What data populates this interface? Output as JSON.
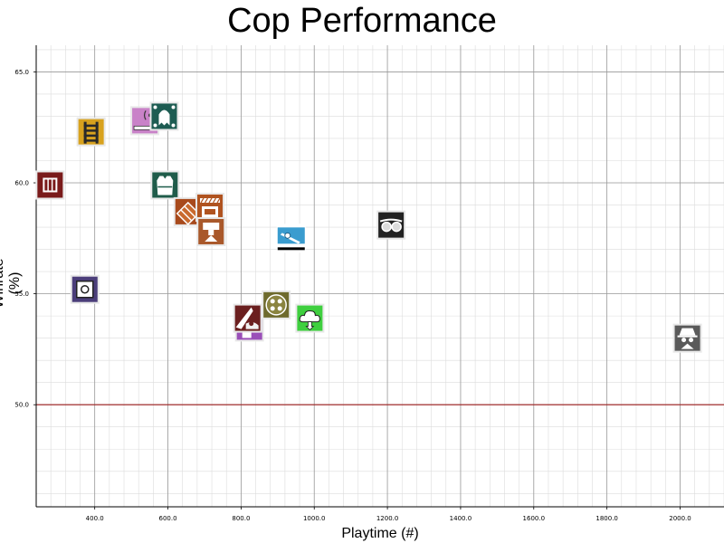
{
  "chart_data": {
    "type": "scatter",
    "title": "Cop Performance",
    "xlabel": "Playtime (#)",
    "ylabel": "Winrate (%)",
    "xlim": [
      240,
      2120
    ],
    "ylim": [
      45.4,
      66.2
    ],
    "x_ticks": [
      400,
      600,
      800,
      1000,
      1200,
      1400,
      1600,
      1800,
      2000
    ],
    "x_tick_labels": [
      "400.0",
      "600.0",
      "800.0",
      "1000.0",
      "1200.0",
      "1400.0",
      "1600.0",
      "1800.0",
      "2000.0"
    ],
    "y_ticks": [
      50,
      55,
      60,
      65
    ],
    "y_tick_labels": [
      "50.0",
      "55.0",
      "60.0",
      "65.0"
    ],
    "grid": true,
    "reference_line": {
      "y": 50,
      "color": "#a02020"
    },
    "points": [
      {
        "icon": "first-aid-icon",
        "x": 278,
        "y": 59.9
      },
      {
        "icon": "ladder-icon",
        "x": 390,
        "y": 62.3
      },
      {
        "icon": "safe-icon",
        "x": 373,
        "y": 55.2
      },
      {
        "icon": "signal-device-icon",
        "x": 537,
        "y": 62.8
      },
      {
        "icon": "ghost-device-icon",
        "x": 590,
        "y": 63.0
      },
      {
        "icon": "armor-vest-icon",
        "x": 592,
        "y": 59.9
      },
      {
        "icon": "shield-deploy-icon",
        "x": 655,
        "y": 58.7
      },
      {
        "icon": "barricade-icon",
        "x": 715,
        "y": 58.9
      },
      {
        "icon": "turret-icon",
        "x": 718,
        "y": 57.8
      },
      {
        "icon": "spray-icon",
        "x": 823,
        "y": 53.5
      },
      {
        "icon": "camera-shade-icon",
        "x": 818,
        "y": 53.9
      },
      {
        "icon": "gear-disc-icon",
        "x": 896,
        "y": 54.5
      },
      {
        "icon": "skewer-icon",
        "x": 937,
        "y": 57.5
      },
      {
        "icon": "cloud-upload-icon",
        "x": 988,
        "y": 53.9
      },
      {
        "icon": "goggles-icon",
        "x": 1210,
        "y": 58.1
      },
      {
        "icon": "spy-icon",
        "x": 2020,
        "y": 53.0
      }
    ],
    "colors": {
      "grid_major": "#9a9a9a",
      "grid_minor": "#dcdcdc",
      "axis": "#000000",
      "reference_line": "#a02020"
    }
  }
}
